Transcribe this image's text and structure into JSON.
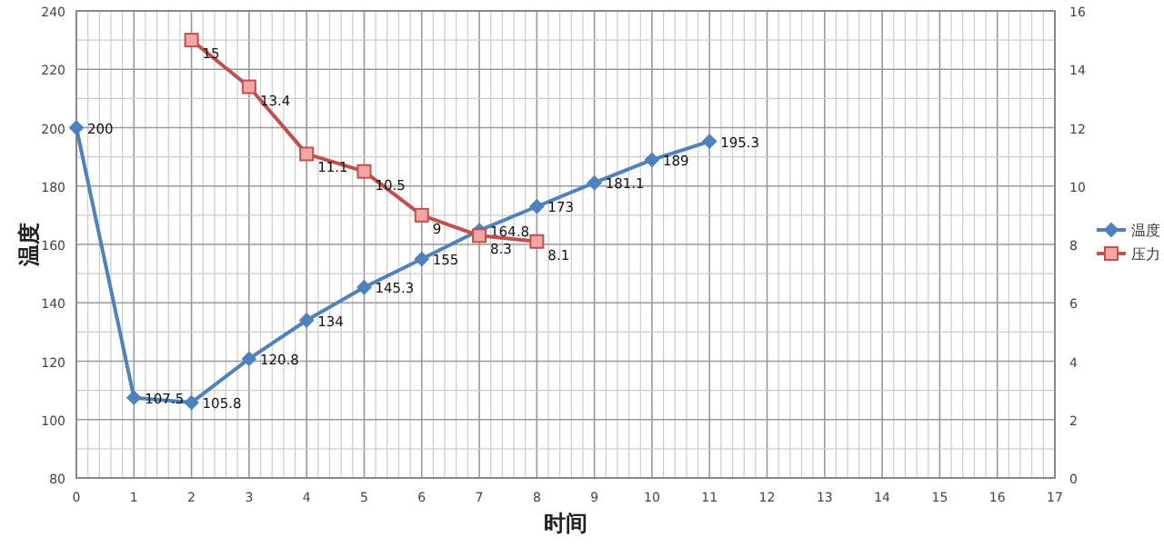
{
  "chart_data": {
    "type": "line",
    "xlabel": "时间",
    "ylabel": "温度",
    "x": [
      0,
      1,
      2,
      3,
      4,
      5,
      6,
      7,
      8,
      9,
      10,
      11
    ],
    "series": [
      {
        "name": "温度",
        "color": "#4f81bd",
        "marker": "diamond",
        "values": [
          200,
          107.5,
          105.8,
          120.8,
          134,
          145.3,
          155,
          164.8,
          173,
          181.1,
          189,
          195.3
        ]
      },
      {
        "name": "压力",
        "color": "#c0504d",
        "marker": "square",
        "axis": "y2",
        "x": [
          2,
          3,
          4,
          5,
          6,
          7,
          8
        ],
        "values": [
          15,
          13.4,
          11.1,
          10.5,
          9,
          8.3,
          8.1
        ]
      }
    ],
    "xlim": [
      0,
      17
    ],
    "xticks": [
      0,
      1,
      2,
      3,
      4,
      5,
      6,
      7,
      8,
      9,
      10,
      11,
      12,
      13,
      14,
      15,
      16,
      17
    ],
    "ylim": [
      80,
      240
    ],
    "yticks": [
      80,
      100,
      120,
      140,
      160,
      180,
      200,
      220,
      240
    ],
    "y2lim": [
      0,
      16
    ],
    "y2ticks": [
      0,
      2,
      4,
      6,
      8,
      10,
      12,
      14,
      16
    ],
    "grid": true,
    "legend": "right",
    "data_labels": true,
    "line_style": "solid"
  }
}
